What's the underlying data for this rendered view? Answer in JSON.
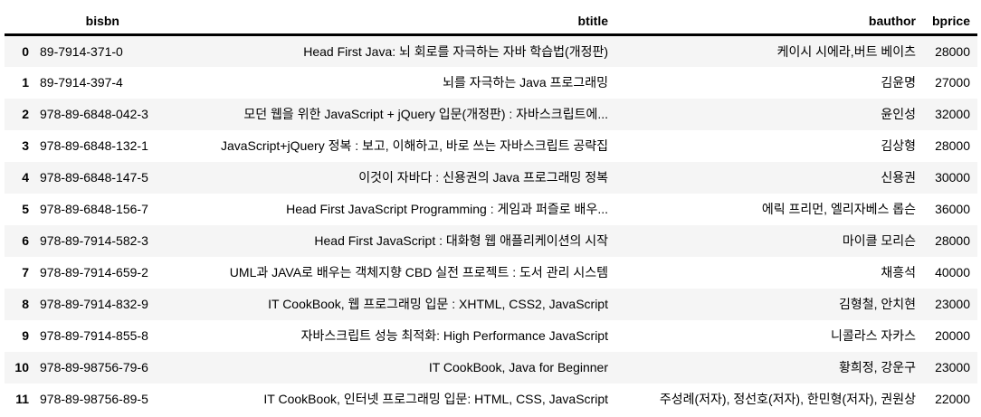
{
  "table": {
    "columns": [
      "",
      "bisbn",
      "btitle",
      "bauthor",
      "bprice"
    ],
    "rows": [
      {
        "index": "0",
        "bisbn": "89-7914-371-0",
        "btitle": "Head First Java: 뇌 회로를 자극하는 자바 학습법(개정판)",
        "bauthor": "케이시 시에라,버트 베이츠",
        "bprice": "28000"
      },
      {
        "index": "1",
        "bisbn": "89-7914-397-4",
        "btitle": "뇌를 자극하는 Java 프로그래밍",
        "bauthor": "김윤명",
        "bprice": "27000"
      },
      {
        "index": "2",
        "bisbn": "978-89-6848-042-3",
        "btitle": "모던 웹을 위한 JavaScript + jQuery 입문(개정판) : 자바스크립트에...",
        "bauthor": "윤인성",
        "bprice": "32000"
      },
      {
        "index": "3",
        "bisbn": "978-89-6848-132-1",
        "btitle": "JavaScript+jQuery 정복 : 보고, 이해하고, 바로 쓰는 자바스크립트 공략집",
        "bauthor": "김상형",
        "bprice": "28000"
      },
      {
        "index": "4",
        "bisbn": "978-89-6848-147-5",
        "btitle": "이것이 자바다 : 신용권의 Java 프로그래밍 정복",
        "bauthor": "신용권",
        "bprice": "30000"
      },
      {
        "index": "5",
        "bisbn": "978-89-6848-156-7",
        "btitle": "Head First JavaScript Programming : 게임과 퍼즐로 배우...",
        "bauthor": "에릭 프리먼, 엘리자베스 롭슨",
        "bprice": "36000"
      },
      {
        "index": "6",
        "bisbn": "978-89-7914-582-3",
        "btitle": "Head First JavaScript : 대화형 웹 애플리케이션의 시작",
        "bauthor": "마이클 모리슨",
        "bprice": "28000"
      },
      {
        "index": "7",
        "bisbn": "978-89-7914-659-2",
        "btitle": "UML과 JAVA로 배우는 객체지향 CBD 실전 프로젝트 : 도서 관리 시스템",
        "bauthor": "채흥석",
        "bprice": "40000"
      },
      {
        "index": "8",
        "bisbn": "978-89-7914-832-9",
        "btitle": "IT CookBook, 웹 프로그래밍 입문 : XHTML, CSS2, JavaScript",
        "bauthor": "김형철, 안치현",
        "bprice": "23000"
      },
      {
        "index": "9",
        "bisbn": "978-89-7914-855-8",
        "btitle": "자바스크립트 성능 최적화: High Performance JavaScript",
        "bauthor": "니콜라스 자카스",
        "bprice": "20000"
      },
      {
        "index": "10",
        "bisbn": "978-89-98756-79-6",
        "btitle": "IT CookBook, Java for Beginner",
        "bauthor": "황희정, 강운구",
        "bprice": "23000"
      },
      {
        "index": "11",
        "bisbn": "978-89-98756-89-5",
        "btitle": "IT CookBook, 인터넷 프로그래밍 입문: HTML, CSS, JavaScript",
        "bauthor": "주성례(저자), 정선호(저자), 한민형(저자), 권원상",
        "bprice": "22000"
      }
    ]
  }
}
